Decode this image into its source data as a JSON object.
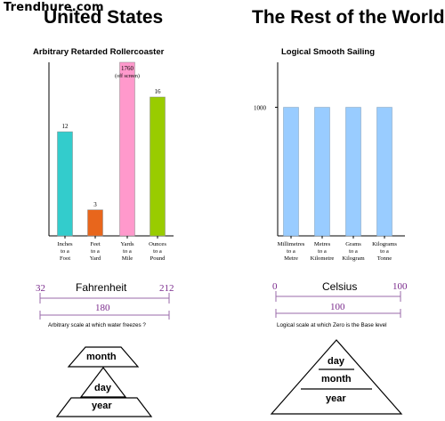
{
  "watermark": "Trendhure.com",
  "left": {
    "title": "United States",
    "scale": {
      "name": "Fahrenheit",
      "low": "32",
      "high": "212",
      "span": "180",
      "caption": "Arbitrary scale at which water freezes ?"
    },
    "pyramid": {
      "top": "month",
      "middle": "day",
      "bottom": "year"
    }
  },
  "right": {
    "title": "The Rest of the World",
    "scale": {
      "name": "Celsius",
      "low": "0",
      "high": "100",
      "span": "100",
      "caption": "Logical scale at which Zero is the Base level"
    },
    "pyramid": {
      "top": "day",
      "middle": "month",
      "bottom": "year"
    }
  },
  "chart_data": [
    {
      "type": "bar",
      "title": "Arbitrary Retarded Rollercoaster",
      "categories": [
        "Inches to a Foot",
        "Feet to a Yard",
        "Yards to a Mile",
        "Ounces to a Pound"
      ],
      "category_lines": [
        [
          "Inches",
          "to a",
          "Foot"
        ],
        [
          "Feet",
          "to a",
          "Yard"
        ],
        [
          "Yards",
          "to a",
          "Mile"
        ],
        [
          "Ounces",
          "to a",
          "Pound"
        ]
      ],
      "values": [
        12,
        3,
        1760,
        16
      ],
      "value_labels": [
        "12",
        "3",
        "1760",
        "16"
      ],
      "annotation": "(off screen)",
      "colors": [
        "#33cccc",
        "#e8661c",
        "#ff99cc",
        "#99cc00"
      ],
      "ylim": [
        0,
        20
      ],
      "clipped_category": "Yards to a Mile"
    },
    {
      "type": "bar",
      "title": "Logical Smooth Sailing",
      "categories": [
        "Millimetres to a Metre",
        "Metres to a Kilometre",
        "Grams to a Kilogram",
        "Kilograms to a Tonne"
      ],
      "category_lines": [
        [
          "Millimetres",
          "to a",
          "Metre"
        ],
        [
          "Metres",
          "to a",
          "Kilometre"
        ],
        [
          "Grams",
          "to a",
          "Kilogram"
        ],
        [
          "Kilograms",
          "to a",
          "Tonne"
        ]
      ],
      "values": [
        1000,
        1000,
        1000,
        1000
      ],
      "ytick": "1000",
      "colors": [
        "#99ccff",
        "#99ccff",
        "#99ccff",
        "#99ccff"
      ],
      "ylim": [
        0,
        1350
      ]
    }
  ]
}
